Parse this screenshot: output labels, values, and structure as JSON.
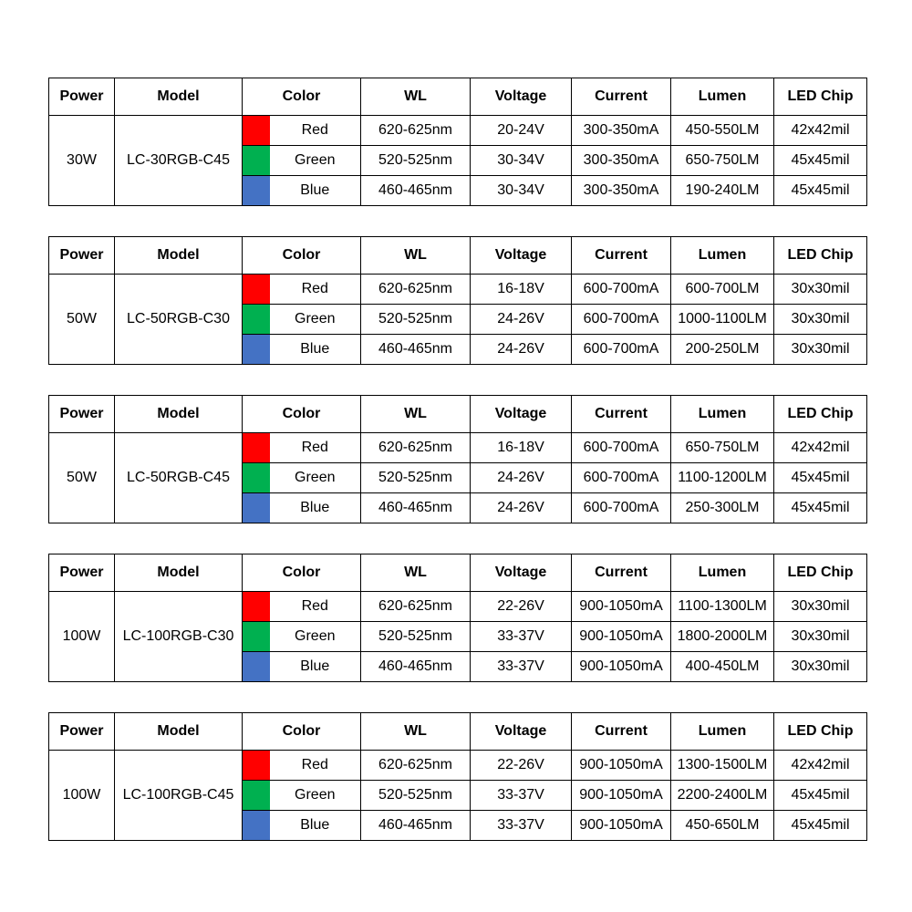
{
  "headers": [
    "Power",
    "Model",
    "Color",
    "WL",
    "Voltage",
    "Current",
    "Lumen",
    "LED Chip"
  ],
  "swatch_colors": {
    "Red": "#ff0000",
    "Green": "#00b050",
    "Blue": "#4472c4"
  },
  "tables": [
    {
      "power": "30W",
      "model": "LC-30RGB-C45",
      "rows": [
        {
          "color": "Red",
          "wl": "620-625nm",
          "voltage": "20-24V",
          "current": "300-350mA",
          "lumen": "450-550LM",
          "chip": "42x42mil"
        },
        {
          "color": "Green",
          "wl": "520-525nm",
          "voltage": "30-34V",
          "current": "300-350mA",
          "lumen": "650-750LM",
          "chip": "45x45mil"
        },
        {
          "color": "Blue",
          "wl": "460-465nm",
          "voltage": "30-34V",
          "current": "300-350mA",
          "lumen": "190-240LM",
          "chip": "45x45mil"
        }
      ]
    },
    {
      "power": "50W",
      "model": "LC-50RGB-C30",
      "rows": [
        {
          "color": "Red",
          "wl": "620-625nm",
          "voltage": "16-18V",
          "current": "600-700mA",
          "lumen": "600-700LM",
          "chip": "30x30mil"
        },
        {
          "color": "Green",
          "wl": "520-525nm",
          "voltage": "24-26V",
          "current": "600-700mA",
          "lumen": "1000-1100LM",
          "chip": "30x30mil"
        },
        {
          "color": "Blue",
          "wl": "460-465nm",
          "voltage": "24-26V",
          "current": "600-700mA",
          "lumen": "200-250LM",
          "chip": "30x30mil"
        }
      ]
    },
    {
      "power": "50W",
      "model": "LC-50RGB-C45",
      "rows": [
        {
          "color": "Red",
          "wl": "620-625nm",
          "voltage": "16-18V",
          "current": "600-700mA",
          "lumen": "650-750LM",
          "chip": "42x42mil"
        },
        {
          "color": "Green",
          "wl": "520-525nm",
          "voltage": "24-26V",
          "current": "600-700mA",
          "lumen": "1100-1200LM",
          "chip": "45x45mil"
        },
        {
          "color": "Blue",
          "wl": "460-465nm",
          "voltage": "24-26V",
          "current": "600-700mA",
          "lumen": "250-300LM",
          "chip": "45x45mil"
        }
      ]
    },
    {
      "power": "100W",
      "model": "LC-100RGB-C30",
      "rows": [
        {
          "color": "Red",
          "wl": "620-625nm",
          "voltage": "22-26V",
          "current": "900-1050mA",
          "lumen": "1100-1300LM",
          "chip": "30x30mil"
        },
        {
          "color": "Green",
          "wl": "520-525nm",
          "voltage": "33-37V",
          "current": "900-1050mA",
          "lumen": "1800-2000LM",
          "chip": "30x30mil"
        },
        {
          "color": "Blue",
          "wl": "460-465nm",
          "voltage": "33-37V",
          "current": "900-1050mA",
          "lumen": "400-450LM",
          "chip": "30x30mil"
        }
      ]
    },
    {
      "power": "100W",
      "model": "LC-100RGB-C45",
      "rows": [
        {
          "color": "Red",
          "wl": "620-625nm",
          "voltage": "22-26V",
          "current": "900-1050mA",
          "lumen": "1300-1500LM",
          "chip": "42x42mil"
        },
        {
          "color": "Green",
          "wl": "520-525nm",
          "voltage": "33-37V",
          "current": "900-1050mA",
          "lumen": "2200-2400LM",
          "chip": "45x45mil"
        },
        {
          "color": "Blue",
          "wl": "460-465nm",
          "voltage": "33-37V",
          "current": "900-1050mA",
          "lumen": "450-650LM",
          "chip": "45x45mil"
        }
      ]
    }
  ]
}
